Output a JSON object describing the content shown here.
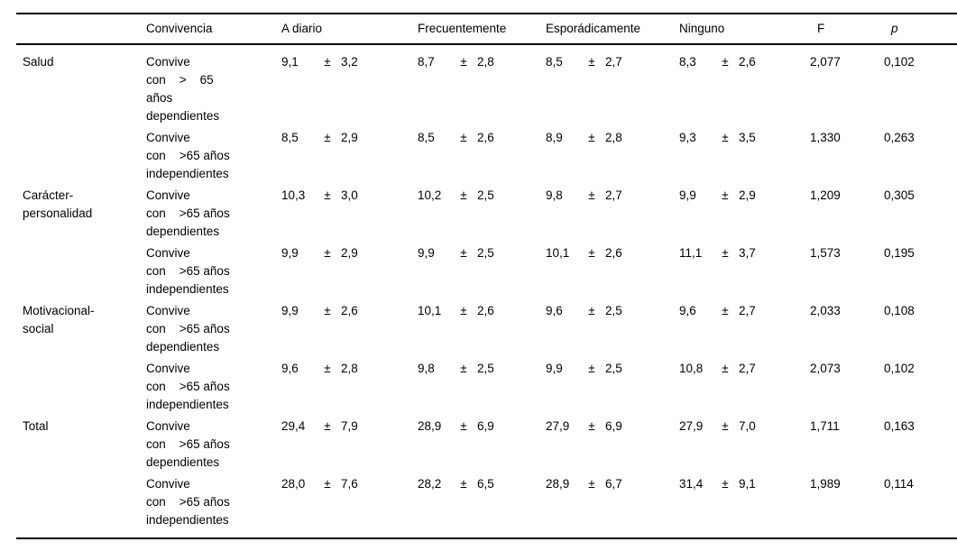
{
  "symbols": {
    "plus_minus": "±"
  },
  "table": {
    "headers": {
      "category": "",
      "convivencia": "Convivencia",
      "a_diario": "A diario",
      "frecuentemente": "Frecuentemente",
      "esporadicamente": "Esporádicamente",
      "ninguno": "Ninguno",
      "F": "F",
      "p": "p"
    },
    "rows": [
      {
        "cat": [
          "Salud"
        ],
        "conv": [
          "Convive",
          "con    >    65",
          "años",
          "dependientes"
        ],
        "adiario": {
          "m": "9,1",
          "s": "3,2"
        },
        "frecuente": {
          "m": "8,7",
          "s": "2,8"
        },
        "esporadica": {
          "m": "8,5",
          "s": "2,7"
        },
        "ninguno": {
          "m": "8,3",
          "s": "2,6"
        },
        "F": "2,077",
        "p": "0,102"
      },
      {
        "cat": [],
        "conv": [
          "Convive",
          "con    >65 años",
          "independientes"
        ],
        "adiario": {
          "m": "8,5",
          "s": "2,9"
        },
        "frecuente": {
          "m": "8,5",
          "s": "2,6"
        },
        "esporadica": {
          "m": "8,9",
          "s": "2,8"
        },
        "ninguno": {
          "m": "9,3",
          "s": "3,5"
        },
        "F": "1,330",
        "p": "0,263"
      },
      {
        "cat": [
          "Carácter-",
          "personalidad"
        ],
        "conv": [
          "Convive",
          "con    >65 años",
          "dependientes"
        ],
        "adiario": {
          "m": "10,3",
          "s": "3,0"
        },
        "frecuente": {
          "m": "10,2",
          "s": "2,5"
        },
        "esporadica": {
          "m": "9,8",
          "s": "2,7"
        },
        "ninguno": {
          "m": "9,9",
          "s": "2,9"
        },
        "F": "1,209",
        "p": "0,305"
      },
      {
        "cat": [],
        "conv": [
          "Convive",
          "con    >65 años",
          "independientes"
        ],
        "adiario": {
          "m": "9,9",
          "s": "2,9"
        },
        "frecuente": {
          "m": "9,9",
          "s": "2,5"
        },
        "esporadica": {
          "m": "10,1",
          "s": "2,6"
        },
        "ninguno": {
          "m": "11,1",
          "s": "3,7"
        },
        "F": "1,573",
        "p": "0,195"
      },
      {
        "cat": [
          "Motivacional-",
          "social"
        ],
        "conv": [
          "Convive",
          "con    >65 años",
          "dependientes"
        ],
        "adiario": {
          "m": "9,9",
          "s": "2,6"
        },
        "frecuente": {
          "m": "10,1",
          "s": "2,6"
        },
        "esporadica": {
          "m": "9,6",
          "s": "2,5"
        },
        "ninguno": {
          "m": "9,6",
          "s": "2,7"
        },
        "F": "2,033",
        "p": "0,108"
      },
      {
        "cat": [],
        "conv": [
          "Convive",
          "con    >65 años",
          "independientes"
        ],
        "adiario": {
          "m": "9,6",
          "s": "2,8"
        },
        "frecuente": {
          "m": "9,8",
          "s": "2,5"
        },
        "esporadica": {
          "m": "9,9",
          "s": "2,5"
        },
        "ninguno": {
          "m": "10,8",
          "s": "2,7"
        },
        "F": "2,073",
        "p": "0,102"
      },
      {
        "cat": [
          "Total"
        ],
        "conv": [
          "Convive",
          "con    >65 años",
          "dependientes"
        ],
        "adiario": {
          "m": "29,4",
          "s": "7,9"
        },
        "frecuente": {
          "m": "28,9",
          "s": "6,9"
        },
        "esporadica": {
          "m": "27,9",
          "s": "6,9"
        },
        "ninguno": {
          "m": "27,9",
          "s": "7,0"
        },
        "F": "1,711",
        "p": "0,163"
      },
      {
        "cat": [],
        "conv": [
          "Convive",
          "con    >65 años",
          "independientes"
        ],
        "adiario": {
          "m": "28,0",
          "s": "7,6"
        },
        "frecuente": {
          "m": "28,2",
          "s": "6,5"
        },
        "esporadica": {
          "m": "28,9",
          "s": "6,7"
        },
        "ninguno": {
          "m": "31,4",
          "s": "9,1"
        },
        "F": "1,989",
        "p": "0,114"
      }
    ]
  }
}
